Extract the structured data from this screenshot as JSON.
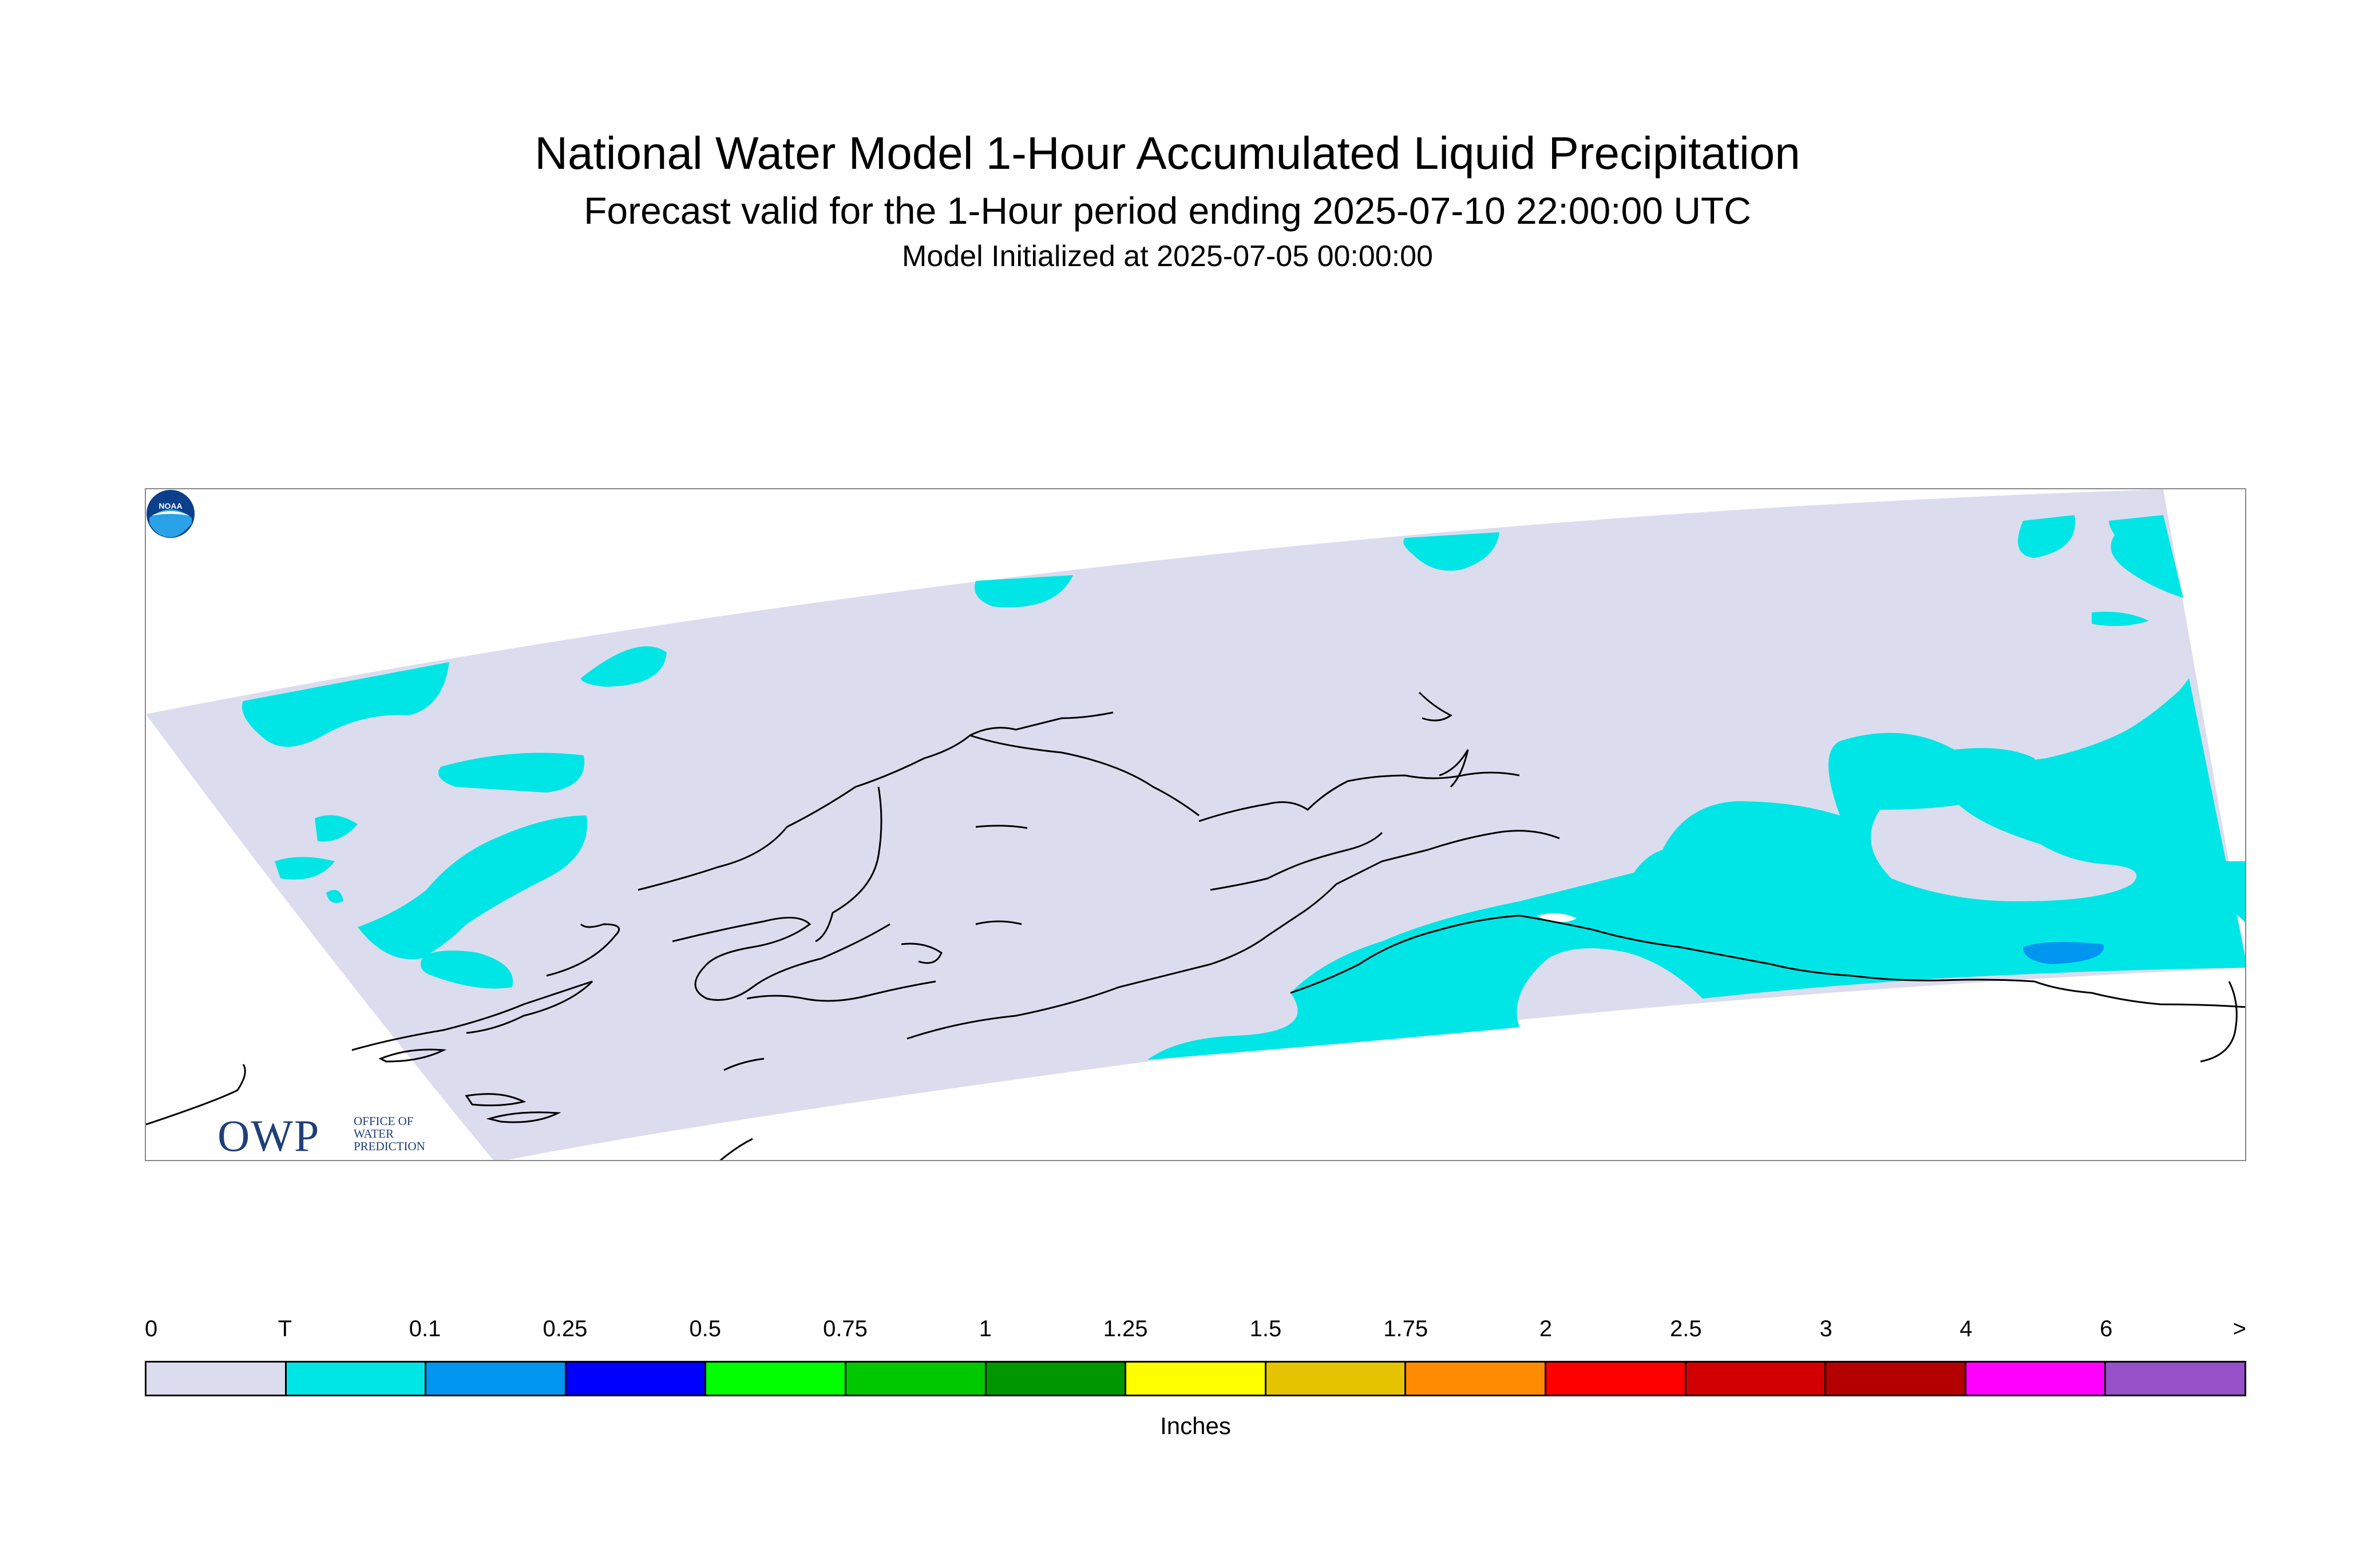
{
  "header": {
    "title": "National Water Model 1-Hour Accumulated Liquid Precipitation",
    "subtitle": "Forecast valid for the 1-Hour period ending 2025-07-10 22:00:00 UTC",
    "init": "Model Initialized at 2025-07-05 00:00:00"
  },
  "logos": {
    "owp_letters": "OWP",
    "owp_line1": "OFFICE OF",
    "owp_line2": "WATER",
    "owp_line3": "PREDICTION",
    "noaa": "NOAA"
  },
  "colors": {
    "domain": "#dcdcef",
    "trace": "#00e6e6",
    "light_blue": "#0096f0",
    "coast": "#000000"
  },
  "legend": {
    "units": "Inches",
    "tick_labels": [
      "0",
      "T",
      "0.1",
      "0.25",
      "0.5",
      "0.75",
      "1",
      "1.25",
      "1.5",
      "1.75",
      "2",
      "2.5",
      "3",
      "4",
      "6",
      ">"
    ],
    "colors": [
      "#dcdcef",
      "#00e6e6",
      "#0096f0",
      "#0000ff",
      "#00ff00",
      "#00c800",
      "#009600",
      "#ffff00",
      "#e6c300",
      "#ff8c00",
      "#ff0000",
      "#d20000",
      "#b40000",
      "#ff00ff",
      "#9650c8"
    ]
  }
}
